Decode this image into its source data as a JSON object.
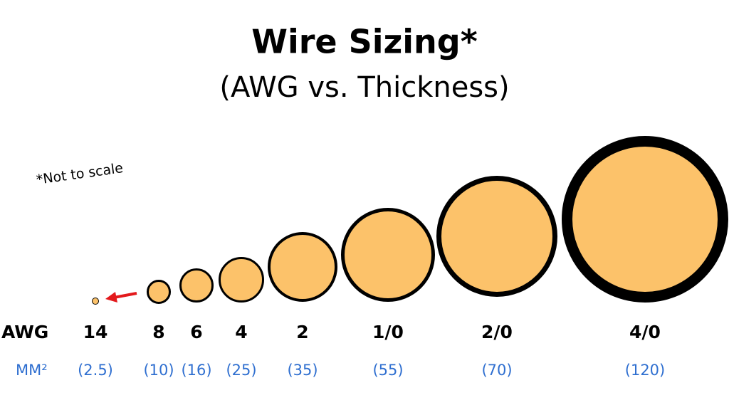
{
  "header": {
    "title": "Wire Sizing*",
    "subtitle": "(AWG vs. Thickness)"
  },
  "note": "*Not to scale",
  "row_labels": {
    "awg": "AWG",
    "mm": "MM²"
  },
  "wires": [
    {
      "awg": "14",
      "mm": "(2.5)"
    },
    {
      "awg": "8",
      "mm": "(10)"
    },
    {
      "awg": "6",
      "mm": "(16)"
    },
    {
      "awg": "4",
      "mm": "(25)"
    },
    {
      "awg": "2",
      "mm": "(35)"
    },
    {
      "awg": "1/0",
      "mm": "(55)"
    },
    {
      "awg": "2/0",
      "mm": "(70)"
    },
    {
      "awg": "4/0",
      "mm": "(120)"
    }
  ]
}
